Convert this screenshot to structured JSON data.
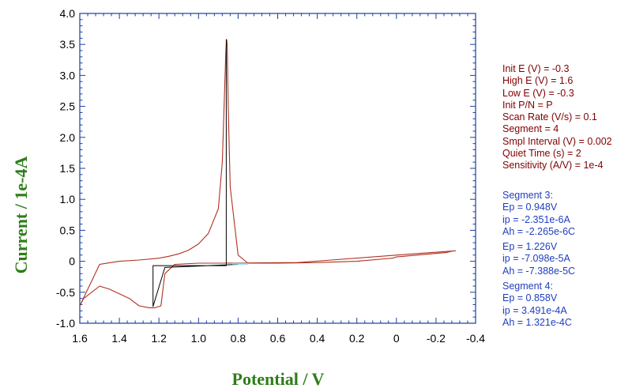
{
  "chart_data": {
    "type": "line",
    "xlabel": "Potential / V",
    "ylabel": "Current / 1e-4A",
    "xlim": [
      1.6,
      -0.4
    ],
    "ylim": [
      -1.0,
      4.0
    ],
    "x_reversed": true,
    "xticks": [
      "1.6",
      "1.4",
      "1.2",
      "1.0",
      "0.8",
      "0.6",
      "0.4",
      "0.2",
      "0",
      "-0.2",
      "-0.4"
    ],
    "xtick_values": [
      1.6,
      1.4,
      1.2,
      1.0,
      0.8,
      0.6,
      0.4,
      0.2,
      0,
      -0.2,
      -0.4
    ],
    "yticks": [
      "4.0",
      "3.5",
      "3.0",
      "2.5",
      "2.0",
      "1.5",
      "1.0",
      "0.5",
      "0",
      "-0.5",
      "-1.0"
    ],
    "ytick_values": [
      4.0,
      3.5,
      3.0,
      2.5,
      2.0,
      1.5,
      1.0,
      0.5,
      0,
      -0.5,
      -1.0
    ],
    "series": [
      {
        "color": "#b03020",
        "x": [
          -0.29,
          -0.25,
          -0.1,
          0.0,
          0.02,
          0.06,
          0.2,
          0.4,
          0.6,
          0.75,
          0.8,
          0.84,
          0.85,
          0.855,
          0.858,
          0.862,
          0.87,
          0.88,
          0.9,
          0.95,
          1.0,
          1.05,
          1.1,
          1.15,
          1.2,
          1.3,
          1.4,
          1.5,
          1.6,
          1.58,
          1.5,
          1.45,
          1.35,
          1.3,
          1.25,
          1.22,
          1.19,
          1.17,
          1.12,
          1.0,
          0.9,
          0.5,
          0.0,
          -0.3
        ],
        "y": [
          0.17,
          0.14,
          0.1,
          0.07,
          0.05,
          0.04,
          0.0,
          -0.02,
          -0.03,
          -0.03,
          0.1,
          1.2,
          2.5,
          3.5,
          3.58,
          3.4,
          2.6,
          1.6,
          0.85,
          0.45,
          0.28,
          0.18,
          0.12,
          0.08,
          0.05,
          0.02,
          0.0,
          -0.05,
          -0.72,
          -0.6,
          -0.4,
          -0.45,
          -0.6,
          -0.72,
          -0.75,
          -0.75,
          -0.72,
          -0.2,
          -0.05,
          -0.03,
          -0.03,
          -0.02,
          0.1,
          0.17
        ]
      },
      {
        "color": "#000000",
        "x": [
          0.86,
          0.86,
          1.23,
          1.23,
          1.17,
          0.8
        ],
        "y": [
          3.58,
          -0.07,
          -0.07,
          -0.73,
          -0.1,
          -0.05
        ]
      }
    ],
    "annotation_segment": {
      "color": "#7fd8f0",
      "x": [
        0.83,
        0.75
      ],
      "y": [
        -0.04,
        -0.04
      ]
    }
  },
  "params": [
    "Init E (V) = -0.3",
    "High E (V) = 1.6",
    "Low E (V) = -0.3",
    "Init P/N = P",
    "Scan Rate (V/s) = 0.1",
    "Segment = 4",
    "Smpl Interval (V) = 0.002",
    "Quiet Time (s) = 2",
    "Sensitivity (A/V) = 1e-4"
  ],
  "results": [
    [
      "Segment 3:",
      "Ep = 0.948V",
      "ip = -2.351e-6A",
      "Ah = -2.265e-6C"
    ],
    [
      "Ep = 1.226V",
      "ip = -7.098e-5A",
      "Ah = -7.388e-5C"
    ],
    [
      "Segment 4:",
      "Ep = 0.858V",
      "ip = 3.491e-4A",
      "Ah = 1.321e-4C"
    ]
  ]
}
